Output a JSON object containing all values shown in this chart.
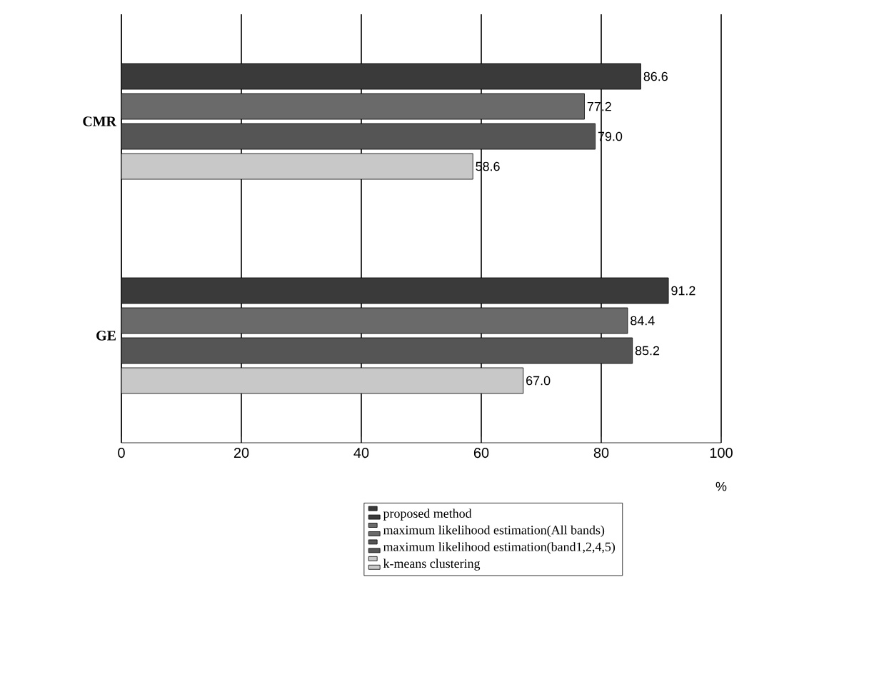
{
  "chart_data": {
    "type": "bar",
    "orientation": "horizontal",
    "categories": [
      "CMR",
      "GE"
    ],
    "series": [
      {
        "name": "proposed method",
        "color": "#3a3a3a",
        "values": [
          86.6,
          91.2
        ],
        "value_labels": [
          "86.6",
          "91.2"
        ]
      },
      {
        "name": "maximum likelihood estimation(All bands)",
        "color": "#6a6a6a",
        "values": [
          77.2,
          84.4
        ],
        "value_labels": [
          "77.2",
          "84.4"
        ]
      },
      {
        "name": "maximum likelihood estimation(band1,2,4,5)",
        "color": "#555555",
        "values": [
          79.0,
          85.2
        ],
        "value_labels": [
          "79.0",
          "85.2"
        ]
      },
      {
        "name": "k-means clustering",
        "color": "#c8c8c8",
        "values": [
          58.6,
          67.0
        ],
        "value_labels": [
          "58.6",
          "67.0"
        ]
      }
    ],
    "xlabel": "%",
    "xlim": [
      0,
      100
    ],
    "xticks": [
      0,
      20,
      40,
      60,
      80,
      100
    ],
    "grid": "x",
    "legend": "bottom"
  }
}
